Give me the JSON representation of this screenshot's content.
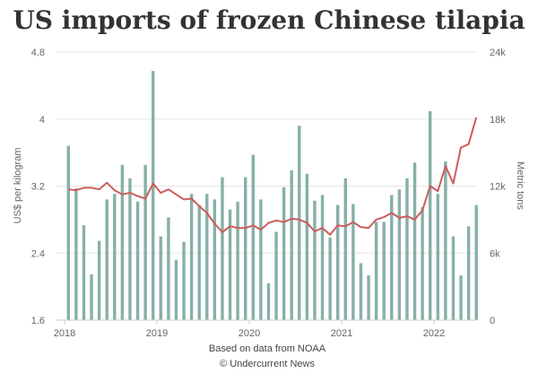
{
  "chart_data": {
    "type": "bar+line",
    "title": "US imports of frozen Chinese tilapia",
    "y_left_label": "US$ per kilogram",
    "y_right_label": "Metric tons",
    "y_left_ticks": [
      "1.6",
      "2.4",
      "3.2",
      "4",
      "4.8"
    ],
    "y_left_range": [
      1.6,
      4.8
    ],
    "y_right_ticks": [
      "0",
      "6k",
      "12k",
      "18k",
      "24k"
    ],
    "y_right_range": [
      0,
      24000
    ],
    "x_ticks": [
      "2018",
      "2019",
      "2020",
      "2021",
      "2022"
    ],
    "x_start": "2018-01",
    "grid": true,
    "source_line": "Based on data from NOAA",
    "credit_line": "© Undercurrent News",
    "colors": {
      "bars": "#86b0a8",
      "line": "#cd5c5c",
      "grid": "#e6e6e6",
      "axis": "#cccccc"
    },
    "series": [
      {
        "type": "bar",
        "axis": "right",
        "unit": "Metric tons",
        "values": [
          15600,
          11800,
          8500,
          4100,
          7100,
          10800,
          11300,
          13900,
          12700,
          10600,
          13900,
          22300,
          7500,
          9200,
          5400,
          7000,
          11300,
          10300,
          11300,
          10800,
          12800,
          9900,
          10600,
          12800,
          14800,
          10800,
          3300,
          7900,
          11900,
          13400,
          17400,
          13100,
          10700,
          11200,
          7400,
          10300,
          12700,
          10400,
          5100,
          4000,
          8800,
          8800,
          11200,
          11700,
          12700,
          14100,
          10100,
          18700,
          11300,
          14200,
          7500,
          4000,
          8400,
          10300
        ]
      },
      {
        "type": "line",
        "axis": "left",
        "unit": "US$ per kilogram",
        "values": [
          3.16,
          3.15,
          3.18,
          3.18,
          3.16,
          3.24,
          3.15,
          3.1,
          3.12,
          3.08,
          3.05,
          3.23,
          3.12,
          3.16,
          3.1,
          3.04,
          3.05,
          2.96,
          2.88,
          2.75,
          2.65,
          2.72,
          2.7,
          2.7,
          2.73,
          2.68,
          2.76,
          2.79,
          2.77,
          2.81,
          2.8,
          2.76,
          2.66,
          2.7,
          2.62,
          2.73,
          2.72,
          2.77,
          2.71,
          2.7,
          2.8,
          2.83,
          2.88,
          2.82,
          2.84,
          2.8,
          2.91,
          3.2,
          3.14,
          3.44,
          3.23,
          3.66,
          3.7,
          4.02
        ]
      }
    ]
  }
}
